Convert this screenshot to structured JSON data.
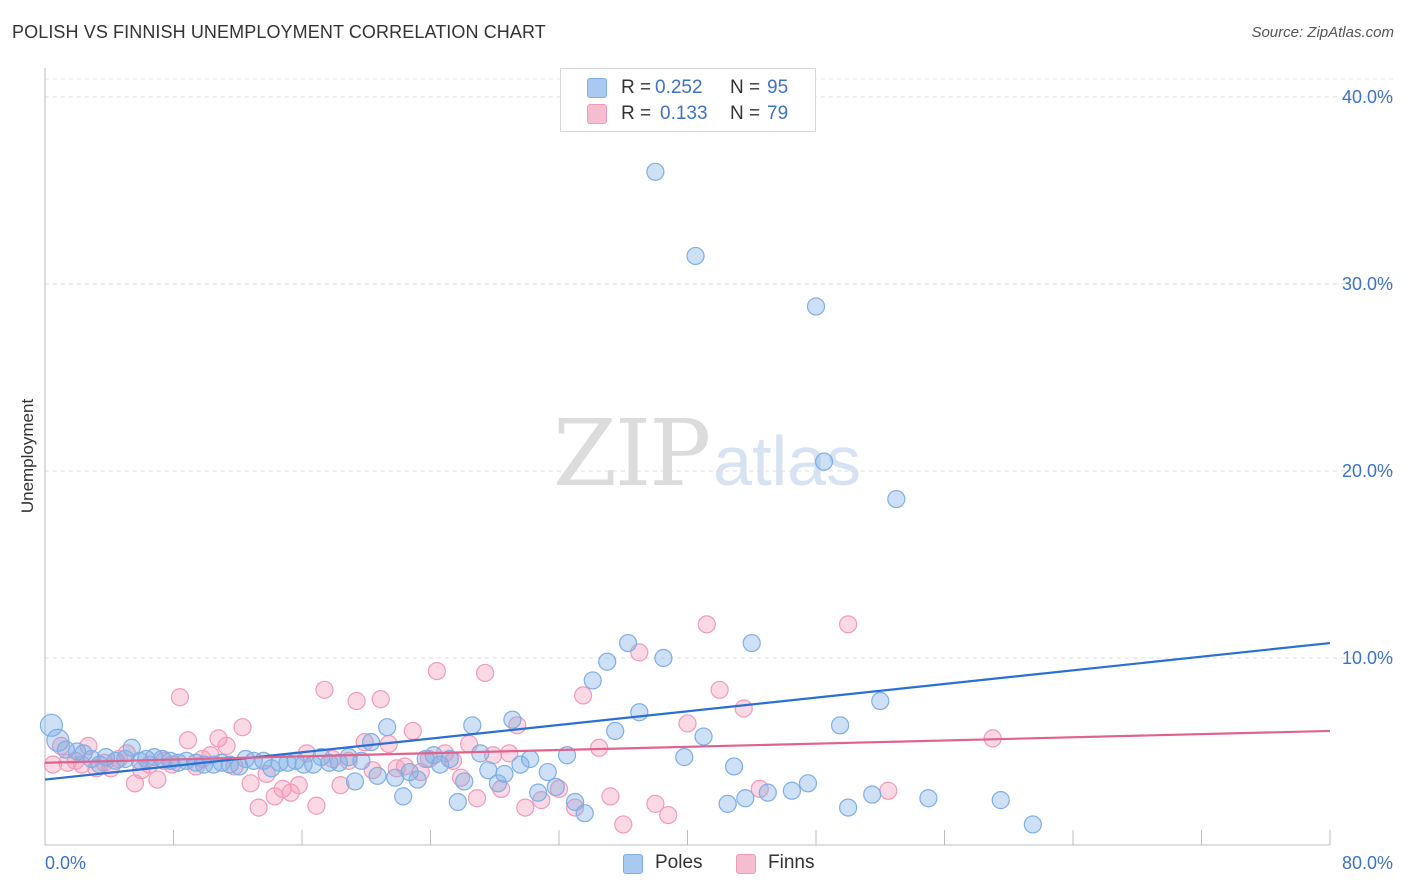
{
  "title": "POLISH VS FINNISH UNEMPLOYMENT CORRELATION CHART",
  "source": "Source: ZipAtlas.com",
  "watermark": {
    "zip": "ZIP",
    "atlas": "atlas"
  },
  "legend": {
    "rows": [
      {
        "r_label": "R =",
        "r_value": "0.252",
        "n_label": "N =",
        "n_value": "95",
        "color": "#a9c9f1"
      },
      {
        "r_label": "R =",
        "r_value": "0.133",
        "n_label": "N =",
        "n_value": "79",
        "color": "#f5bdd0"
      }
    ]
  },
  "bottom_legend": [
    {
      "label": "Poles",
      "color": "#a9c9f1"
    },
    {
      "label": "Finns",
      "color": "#f5bdd0"
    }
  ],
  "chart_data": {
    "type": "scatter",
    "title": "POLISH VS FINNISH UNEMPLOYMENT CORRELATION CHART",
    "xlabel": "",
    "ylabel": "Unemployment",
    "xlim": [
      0,
      80
    ],
    "ylim": [
      0,
      40
    ],
    "x_tick_labels": [
      "0.0%",
      "80.0%"
    ],
    "y_ticks": [
      10,
      20,
      30,
      40
    ],
    "y_tick_labels": [
      "10.0%",
      "20.0%",
      "30.0%",
      "40.0%"
    ],
    "grid": true,
    "legend_position": "top-center",
    "series": [
      {
        "name": "Poles",
        "color": "#7eaee6",
        "trend_color": "#2a6fd4",
        "trend": {
          "x": [
            0,
            80
          ],
          "y": [
            3.5,
            10.8
          ]
        },
        "points": [
          [
            0.4,
            6.4
          ],
          [
            0.8,
            5.6
          ],
          [
            1.3,
            5.1
          ],
          [
            2.0,
            5.0
          ],
          [
            2.4,
            4.9
          ],
          [
            2.9,
            4.6
          ],
          [
            3.4,
            4.3
          ],
          [
            3.8,
            4.7
          ],
          [
            4.4,
            4.5
          ],
          [
            5.0,
            4.6
          ],
          [
            5.4,
            5.2
          ],
          [
            5.9,
            4.5
          ],
          [
            6.3,
            4.6
          ],
          [
            6.8,
            4.7
          ],
          [
            7.3,
            4.6
          ],
          [
            7.8,
            4.5
          ],
          [
            8.3,
            4.4
          ],
          [
            8.8,
            4.5
          ],
          [
            9.4,
            4.4
          ],
          [
            9.9,
            4.3
          ],
          [
            10.5,
            4.3
          ],
          [
            11.0,
            4.4
          ],
          [
            11.5,
            4.3
          ],
          [
            12.1,
            4.2
          ],
          [
            12.5,
            4.6
          ],
          [
            13.0,
            4.5
          ],
          [
            13.6,
            4.5
          ],
          [
            14.1,
            4.1
          ],
          [
            14.6,
            4.4
          ],
          [
            15.1,
            4.4
          ],
          [
            15.6,
            4.5
          ],
          [
            16.1,
            4.3
          ],
          [
            16.7,
            4.3
          ],
          [
            17.2,
            4.7
          ],
          [
            17.7,
            4.4
          ],
          [
            18.3,
            4.4
          ],
          [
            18.9,
            4.7
          ],
          [
            19.3,
            3.4
          ],
          [
            19.7,
            4.5
          ],
          [
            20.3,
            5.5
          ],
          [
            20.7,
            3.7
          ],
          [
            21.3,
            6.3
          ],
          [
            21.8,
            3.6
          ],
          [
            22.3,
            2.6
          ],
          [
            22.7,
            3.9
          ],
          [
            23.2,
            3.5
          ],
          [
            23.7,
            4.6
          ],
          [
            24.2,
            4.8
          ],
          [
            24.6,
            4.3
          ],
          [
            25.2,
            4.6
          ],
          [
            25.7,
            2.3
          ],
          [
            26.1,
            3.4
          ],
          [
            26.6,
            6.4
          ],
          [
            27.1,
            4.9
          ],
          [
            27.6,
            4.0
          ],
          [
            28.2,
            3.3
          ],
          [
            28.6,
            3.8
          ],
          [
            29.1,
            6.7
          ],
          [
            29.6,
            4.3
          ],
          [
            30.2,
            4.6
          ],
          [
            30.7,
            2.8
          ],
          [
            31.3,
            3.9
          ],
          [
            31.8,
            3.1
          ],
          [
            32.5,
            4.8
          ],
          [
            33.0,
            2.3
          ],
          [
            33.6,
            1.7
          ],
          [
            34.1,
            8.8
          ],
          [
            35.0,
            9.8
          ],
          [
            35.5,
            6.1
          ],
          [
            36.3,
            10.8
          ],
          [
            37.0,
            7.1
          ],
          [
            38.5,
            10.0
          ],
          [
            39.8,
            4.7
          ],
          [
            41.0,
            5.8
          ],
          [
            42.5,
            2.2
          ],
          [
            42.9,
            4.2
          ],
          [
            43.6,
            2.5
          ],
          [
            44.0,
            10.8
          ],
          [
            45.0,
            2.8
          ],
          [
            46.5,
            2.9
          ],
          [
            47.5,
            3.3
          ],
          [
            49.5,
            6.4
          ],
          [
            50.0,
            2.0
          ],
          [
            51.5,
            2.7
          ],
          [
            52.0,
            7.7
          ],
          [
            55.0,
            2.5
          ],
          [
            59.5,
            2.4
          ],
          [
            61.5,
            1.1
          ],
          [
            48.5,
            20.5
          ],
          [
            53.0,
            18.5
          ],
          [
            38.0,
            36.0
          ],
          [
            40.5,
            31.5
          ],
          [
            48.0,
            28.8
          ]
        ]
      },
      {
        "name": "Finns",
        "color": "#f29bb8",
        "trend_color": "#e0638e",
        "trend": {
          "x": [
            0,
            80
          ],
          "y": [
            4.4,
            6.1
          ]
        },
        "points": [
          [
            0.5,
            4.3
          ],
          [
            1.0,
            5.3
          ],
          [
            1.4,
            4.4
          ],
          [
            1.9,
            4.5
          ],
          [
            2.3,
            4.3
          ],
          [
            2.7,
            5.3
          ],
          [
            3.2,
            4.1
          ],
          [
            3.7,
            4.4
          ],
          [
            4.1,
            4.1
          ],
          [
            4.6,
            4.6
          ],
          [
            5.1,
            4.9
          ],
          [
            5.6,
            3.3
          ],
          [
            6.0,
            4.0
          ],
          [
            6.5,
            4.3
          ],
          [
            7.0,
            3.5
          ],
          [
            7.4,
            4.5
          ],
          [
            7.9,
            4.3
          ],
          [
            8.4,
            7.9
          ],
          [
            8.9,
            5.6
          ],
          [
            9.4,
            4.2
          ],
          [
            9.8,
            4.6
          ],
          [
            10.3,
            4.8
          ],
          [
            10.8,
            5.7
          ],
          [
            11.3,
            5.3
          ],
          [
            11.8,
            4.2
          ],
          [
            12.3,
            6.3
          ],
          [
            12.8,
            3.3
          ],
          [
            13.3,
            2.0
          ],
          [
            13.8,
            3.8
          ],
          [
            14.3,
            2.6
          ],
          [
            14.8,
            3.0
          ],
          [
            15.3,
            2.8
          ],
          [
            15.8,
            3.2
          ],
          [
            16.3,
            4.9
          ],
          [
            16.9,
            2.1
          ],
          [
            17.4,
            8.3
          ],
          [
            17.9,
            4.6
          ],
          [
            18.4,
            3.2
          ],
          [
            18.9,
            4.5
          ],
          [
            19.4,
            7.7
          ],
          [
            19.9,
            5.5
          ],
          [
            20.4,
            4.0
          ],
          [
            20.9,
            7.8
          ],
          [
            21.4,
            5.4
          ],
          [
            21.9,
            4.1
          ],
          [
            22.4,
            4.2
          ],
          [
            22.9,
            6.1
          ],
          [
            23.4,
            3.9
          ],
          [
            23.9,
            4.6
          ],
          [
            24.4,
            9.3
          ],
          [
            24.9,
            4.9
          ],
          [
            25.4,
            4.5
          ],
          [
            25.9,
            3.6
          ],
          [
            26.4,
            5.4
          ],
          [
            26.9,
            2.5
          ],
          [
            27.4,
            9.2
          ],
          [
            27.9,
            4.8
          ],
          [
            28.4,
            3.0
          ],
          [
            28.9,
            4.9
          ],
          [
            29.4,
            6.4
          ],
          [
            29.9,
            2.0
          ],
          [
            30.9,
            2.4
          ],
          [
            32.0,
            3.0
          ],
          [
            33.0,
            2.0
          ],
          [
            33.5,
            8.0
          ],
          [
            34.5,
            5.2
          ],
          [
            35.2,
            2.6
          ],
          [
            36.0,
            1.1
          ],
          [
            37.0,
            10.3
          ],
          [
            38.0,
            2.2
          ],
          [
            38.8,
            1.6
          ],
          [
            40.0,
            6.5
          ],
          [
            41.2,
            11.8
          ],
          [
            42.0,
            8.3
          ],
          [
            43.5,
            7.3
          ],
          [
            44.5,
            3.0
          ],
          [
            50.0,
            11.8
          ],
          [
            52.5,
            2.9
          ],
          [
            59.0,
            5.7
          ]
        ]
      }
    ]
  }
}
